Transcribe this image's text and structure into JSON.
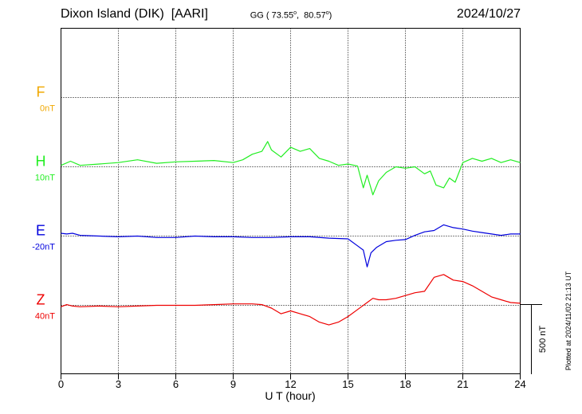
{
  "header": {
    "station": "Dixon Island (DIK)  [AARI]",
    "coords_prefix": "GG ( 73.55",
    "coords_mid": ",  80.57",
    "coords_suffix": ")",
    "deg_symbol": "o",
    "date": "2024/10/27"
  },
  "footer": {
    "xlabel": "U T (hour)",
    "scale_label": "500 nT",
    "plotted": "Plotted at 2024/11/02 21:13 UT"
  },
  "chart_data": {
    "type": "line",
    "title": "Dixon Island (DIK)  [AARI]",
    "xlabel": "U T (hour)",
    "ylabel": "",
    "xlim": [
      0,
      24
    ],
    "x_ticks": [
      0,
      3,
      6,
      9,
      12,
      15,
      18,
      21,
      24
    ],
    "grid": true,
    "scale_bar_nT": 500,
    "channels": [
      {
        "name": "F",
        "baseline": "0nT",
        "color": "#f0a800",
        "values": []
      },
      {
        "name": "H",
        "baseline": "10nT",
        "color": "#22ee22",
        "x": [
          0,
          0.5,
          1,
          2,
          3,
          4,
          5,
          6,
          7,
          8,
          9,
          9.5,
          10,
          10.5,
          10.8,
          11,
          11.5,
          12,
          12.5,
          13,
          13.5,
          14,
          14.5,
          15,
          15.5,
          15.8,
          16,
          16.3,
          16.6,
          17,
          17.5,
          18,
          18.5,
          19,
          19.3,
          19.6,
          20,
          20.3,
          20.6,
          21,
          21.5,
          22,
          22.5,
          23,
          23.5,
          24
        ],
        "values": [
          10,
          40,
          10,
          20,
          30,
          50,
          25,
          35,
          40,
          45,
          30,
          50,
          90,
          110,
          180,
          120,
          70,
          140,
          110,
          130,
          60,
          40,
          10,
          20,
          5,
          -150,
          -60,
          -200,
          -100,
          -40,
          0,
          -10,
          0,
          -50,
          -30,
          -130,
          -150,
          -80,
          -110,
          30,
          60,
          40,
          60,
          30,
          50,
          30
        ]
      },
      {
        "name": "E",
        "baseline": "-20nT",
        "color": "#0000dd",
        "x": [
          0,
          0.3,
          0.6,
          1,
          2,
          3,
          4,
          5,
          6,
          7,
          8,
          9,
          10,
          11,
          12,
          13,
          14,
          15,
          15.5,
          15.8,
          16,
          16.2,
          16.5,
          17,
          17.5,
          18,
          18.5,
          19,
          19.5,
          20,
          20.5,
          21,
          21.5,
          22,
          22.5,
          23,
          23.5,
          24
        ],
        "values": [
          20,
          15,
          20,
          5,
          0,
          -5,
          0,
          -10,
          -10,
          0,
          -5,
          -5,
          -10,
          -10,
          -5,
          -5,
          -15,
          -20,
          -70,
          -100,
          -220,
          -120,
          -80,
          -40,
          -30,
          -25,
          5,
          30,
          40,
          80,
          60,
          50,
          35,
          25,
          15,
          5,
          15,
          15
        ]
      },
      {
        "name": "Z",
        "baseline": "40nT",
        "color": "#ee0000",
        "x": [
          0,
          0.3,
          0.6,
          1,
          2,
          3,
          4,
          5,
          6,
          7,
          8,
          9,
          10,
          10.5,
          11,
          11.5,
          12,
          12.5,
          13,
          13.5,
          14,
          14.5,
          15,
          15.5,
          16,
          16.3,
          16.6,
          17,
          17.5,
          18,
          18.5,
          19,
          19.5,
          20,
          20.5,
          21,
          21.5,
          22,
          22.5,
          23,
          23.5,
          24
        ],
        "values": [
          -10,
          5,
          -5,
          -10,
          -5,
          -10,
          -5,
          0,
          0,
          0,
          5,
          10,
          10,
          5,
          -20,
          -60,
          -40,
          -60,
          -80,
          -120,
          -140,
          -120,
          -80,
          -30,
          20,
          50,
          40,
          40,
          50,
          70,
          90,
          100,
          200,
          220,
          180,
          170,
          140,
          100,
          60,
          40,
          20,
          15
        ]
      }
    ]
  }
}
